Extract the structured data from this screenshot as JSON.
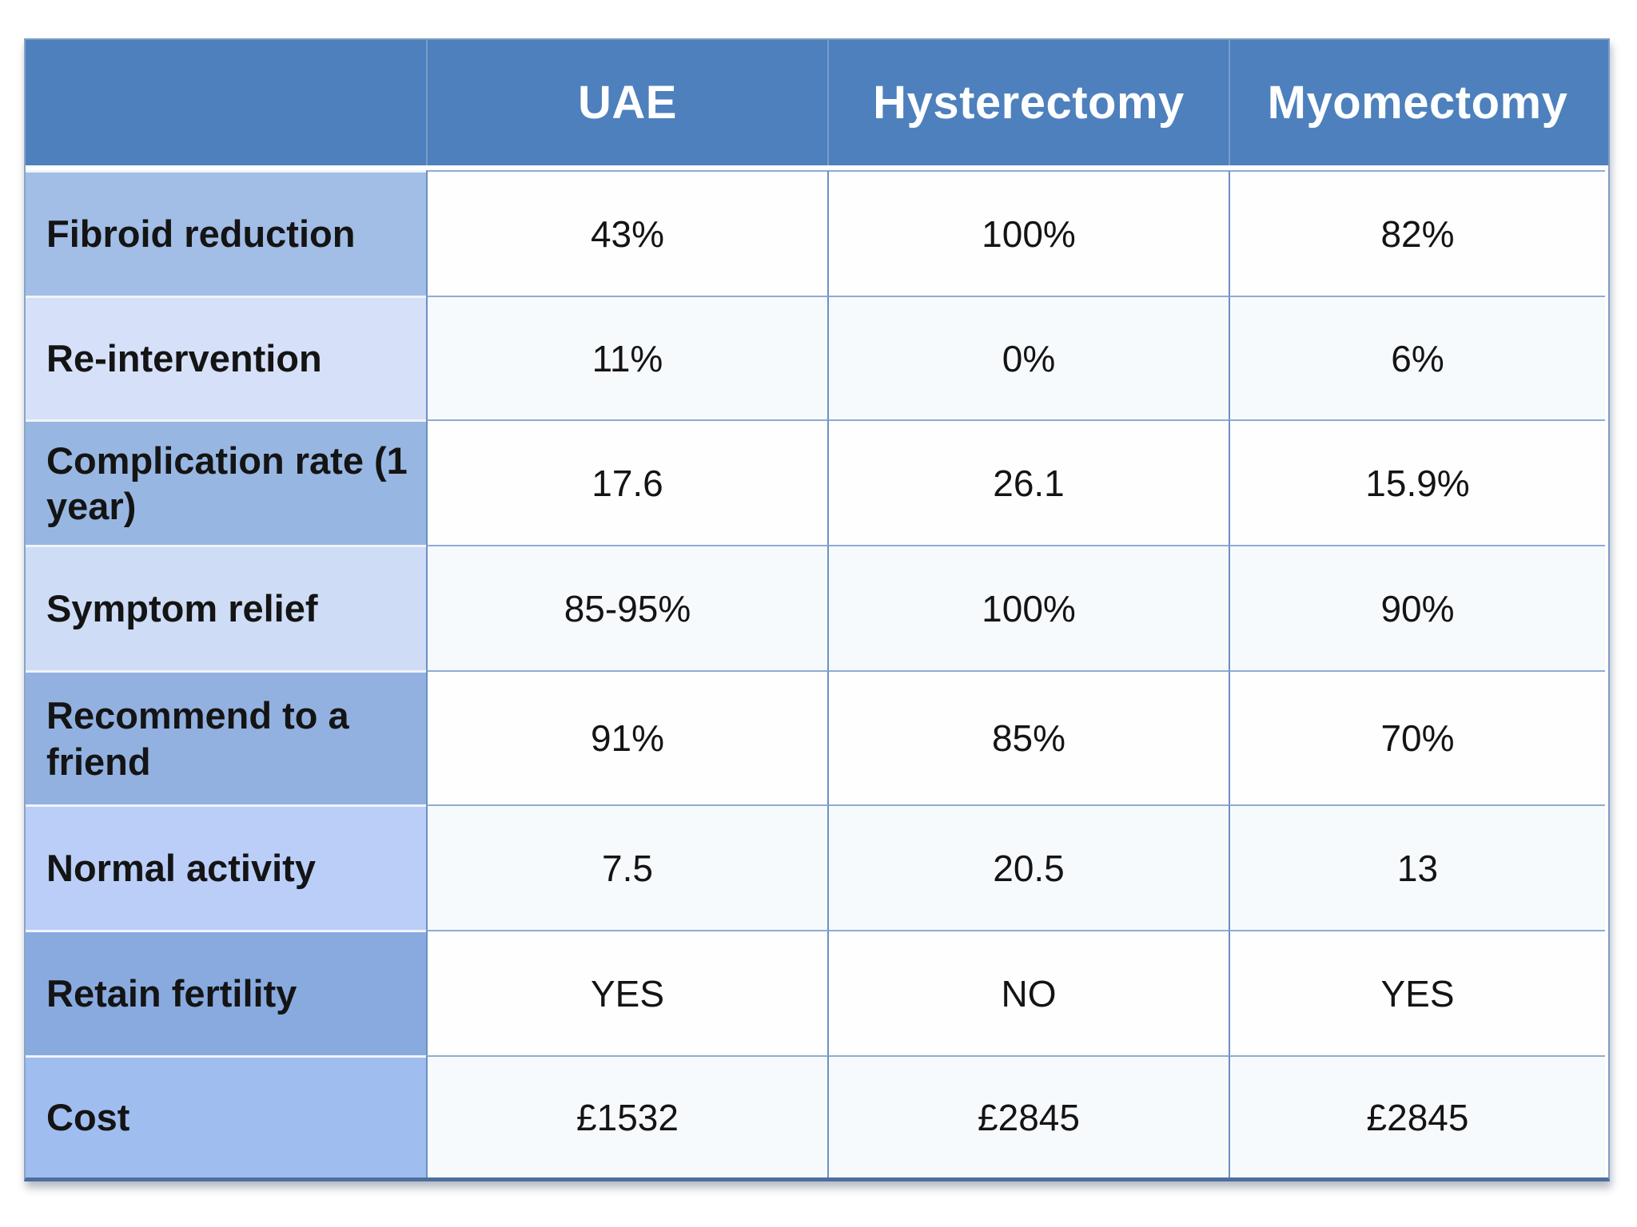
{
  "chart_data": {
    "type": "table",
    "title": "",
    "columns": [
      "",
      "UAE",
      "Hysterectomy",
      "Myomectomy"
    ],
    "rows": [
      {
        "label": "Fibroid reduction",
        "values": [
          "43%",
          "100%",
          "82%"
        ]
      },
      {
        "label": "Re-intervention",
        "values": [
          "11%",
          "0%",
          "6%"
        ]
      },
      {
        "label": "Complication rate (1 year)",
        "values": [
          "17.6",
          "26.1",
          "15.9%"
        ]
      },
      {
        "label": "Symptom relief",
        "values": [
          "85-95%",
          "100%",
          "90%"
        ]
      },
      {
        "label": "Recommend to a friend",
        "values": [
          "91%",
          "85%",
          "70%"
        ]
      },
      {
        "label": "Normal activity",
        "values": [
          "7.5",
          "20.5",
          "13"
        ]
      },
      {
        "label": "Retain fertility",
        "values": [
          "YES",
          "NO",
          "YES"
        ]
      },
      {
        "label": "Cost",
        "values": [
          "£1532",
          "£2845",
          "£2845"
        ]
      }
    ],
    "layout": {
      "header_text_color": "#ffffff",
      "header_bg": "#4d80bd",
      "label_band_dark": "#98b6e2",
      "label_band_light": "#d6e0f8",
      "grid_line_color": "#6b90c2"
    }
  }
}
